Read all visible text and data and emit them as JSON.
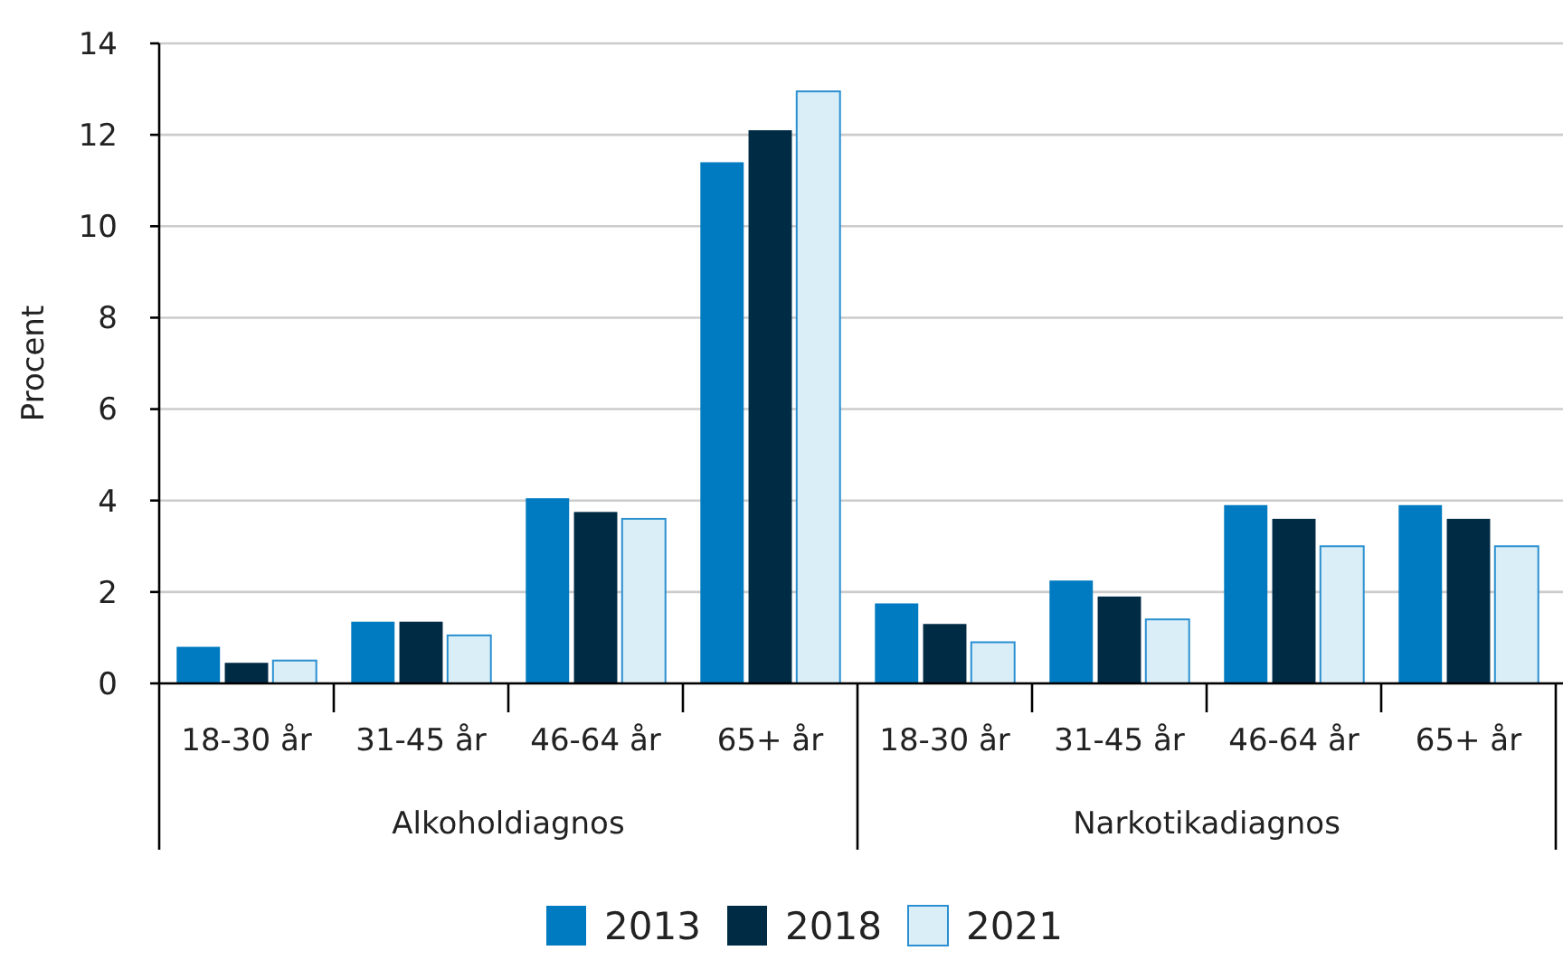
{
  "chart_data": {
    "type": "bar",
    "ylabel": "Procent",
    "categories": [
      "18-30 år",
      "31-45 år",
      "46-64 år",
      "65+ år",
      "18-30 år",
      "31-45 år",
      "46-64 år",
      "65+ år"
    ],
    "series": [
      {
        "name": "2013",
        "color": "#007ac0",
        "values": [
          0.8,
          1.35,
          4.05,
          11.4,
          1.75,
          2.25,
          3.9,
          3.9
        ]
      },
      {
        "name": "2018",
        "color": "#002b45",
        "values": [
          0.45,
          1.35,
          3.75,
          12.1,
          1.3,
          1.9,
          3.6,
          3.6
        ]
      },
      {
        "name": "2021",
        "color": "#daeef7",
        "values": [
          0.5,
          1.05,
          3.6,
          12.95,
          0.9,
          1.4,
          3.0,
          3.0
        ]
      }
    ],
    "annotations": [
      "Alkoholdiagnos",
      "Narkotikadiagnos"
    ],
    "ylim": [
      0,
      14
    ],
    "yticks": [
      0,
      2,
      4,
      6,
      8,
      10,
      12,
      14
    ],
    "grid": "y",
    "legend": "bottom"
  }
}
